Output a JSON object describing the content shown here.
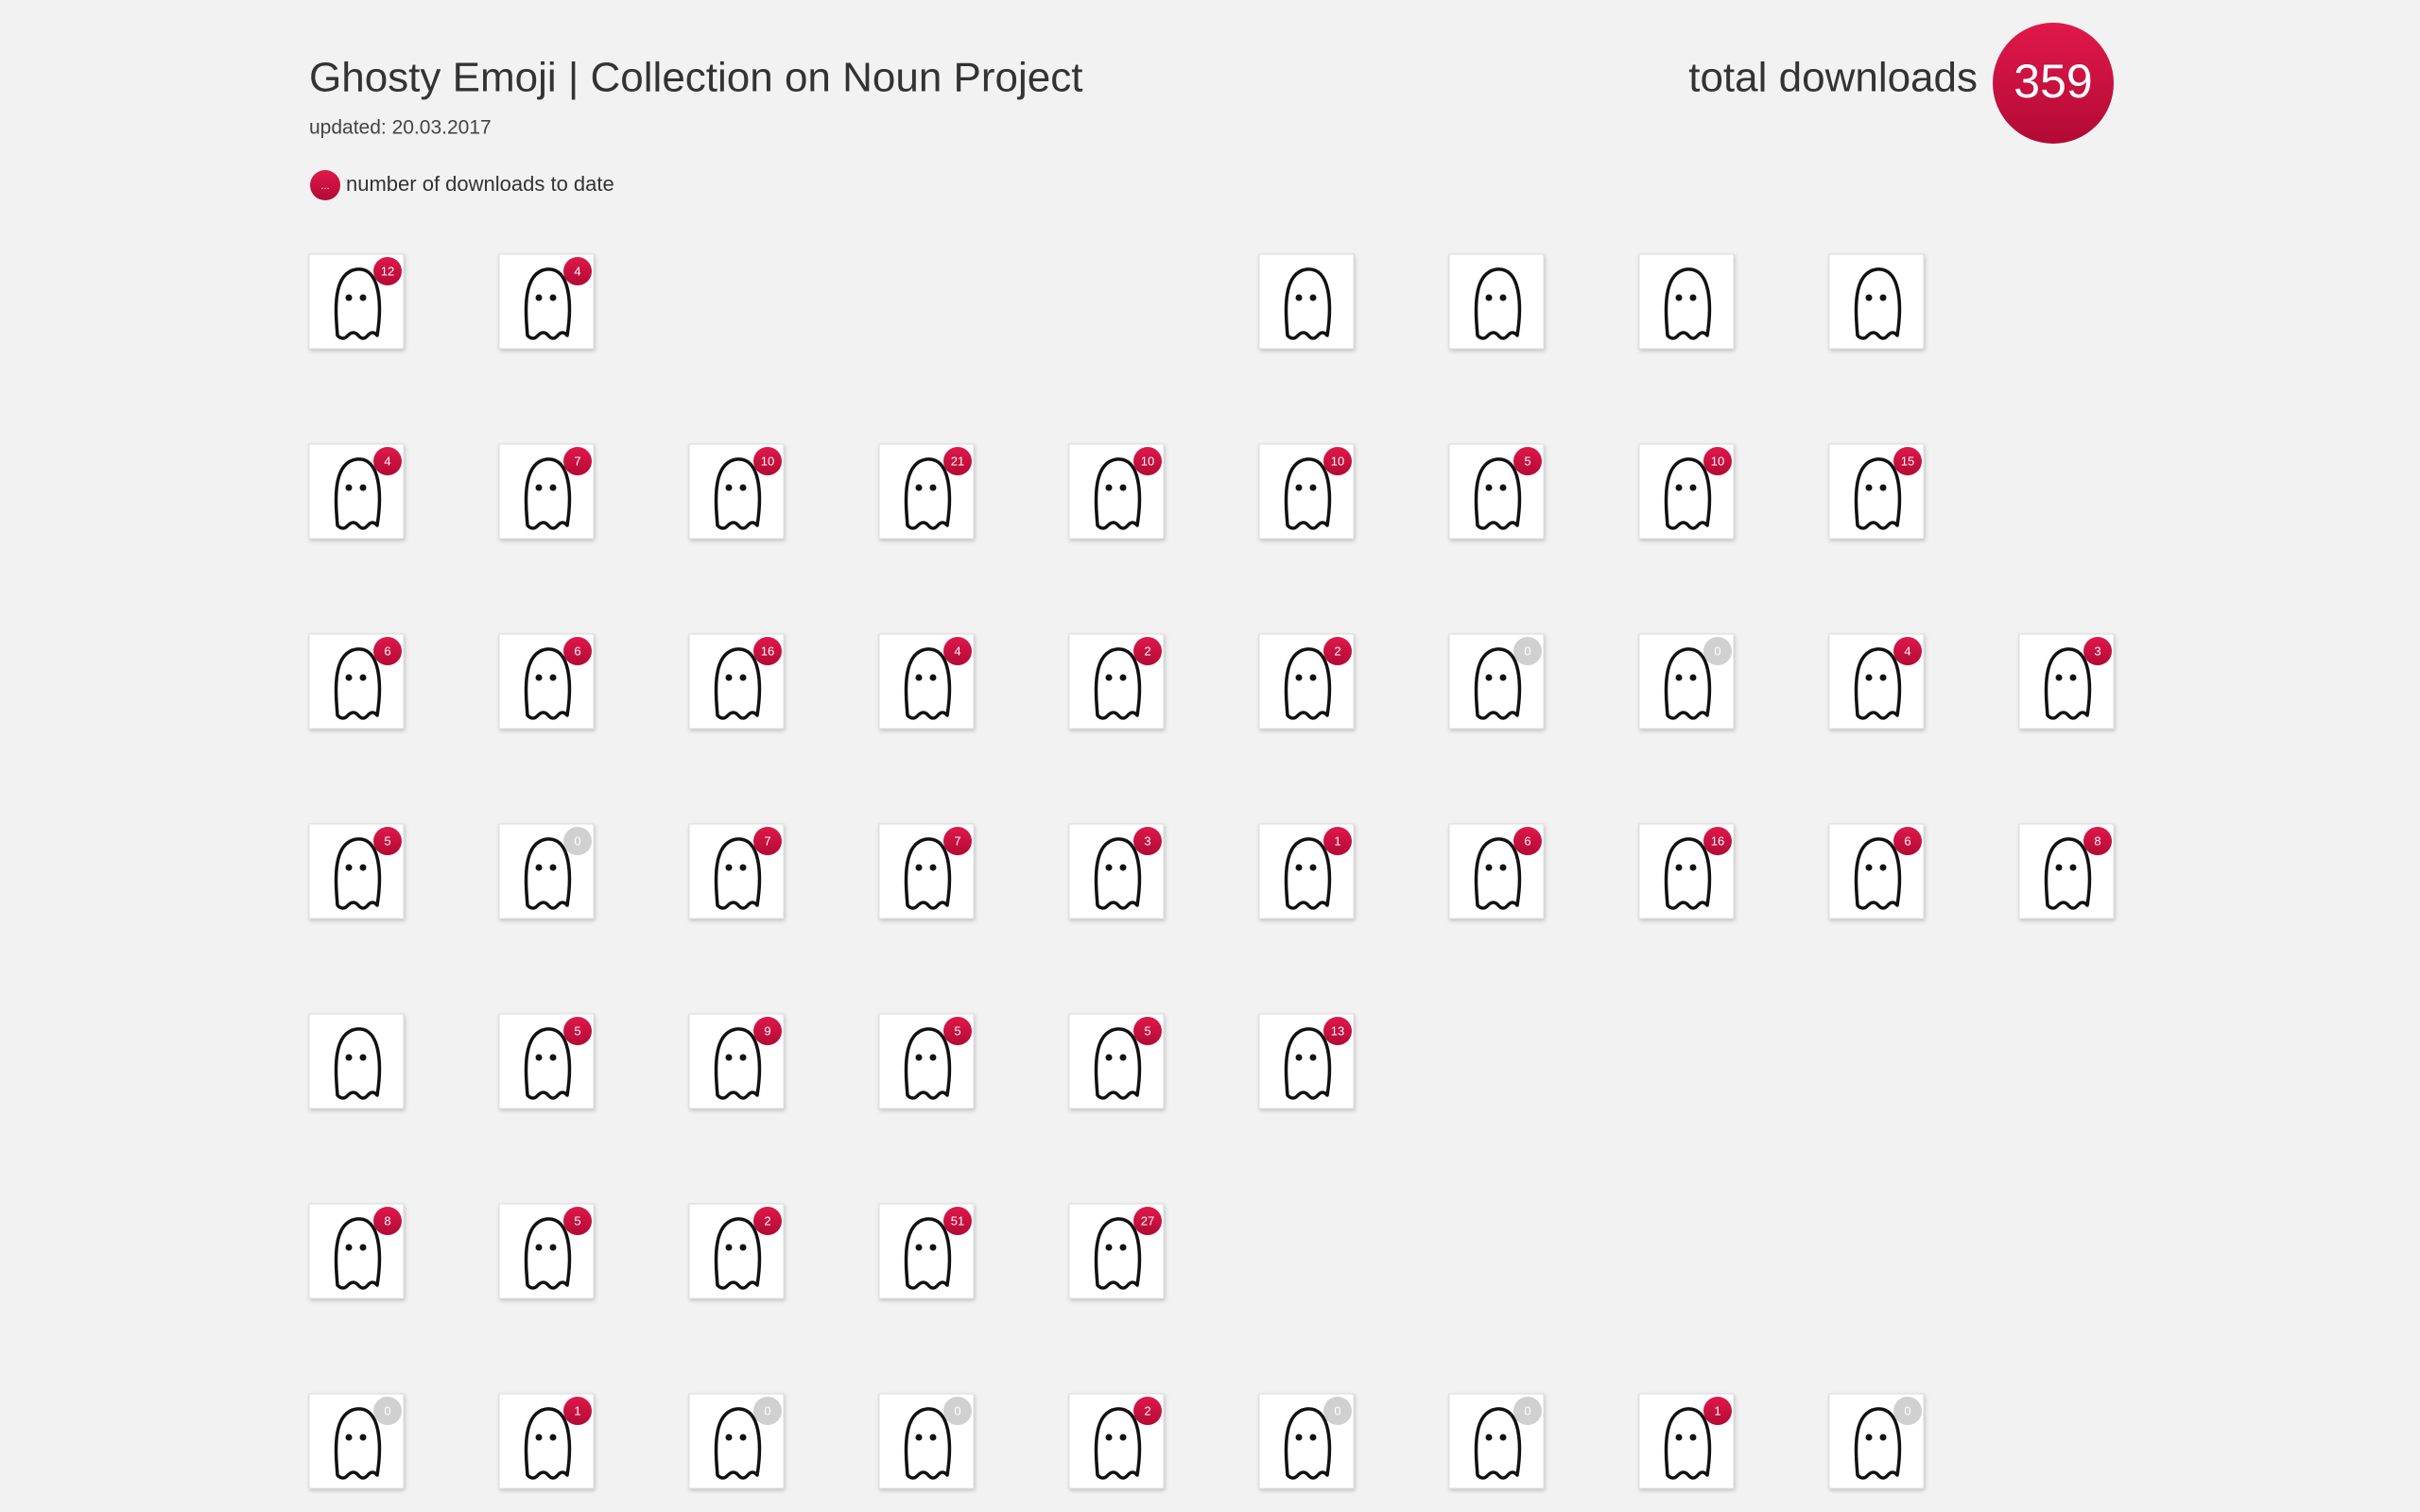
{
  "header": {
    "title": "Ghosty Emoji | Collection on Noun Project",
    "updated": "updated: 20.03.2017",
    "total_label": "total downloads",
    "total": 359
  },
  "legend": {
    "symbol": "...",
    "text": "number of downloads to date"
  },
  "grid": {
    "rows": [
      [
        {
          "count": 12
        },
        {
          "count": 4
        },
        null,
        null,
        null,
        {
          "count": null
        },
        {
          "count": null
        },
        {
          "count": null
        },
        {
          "count": null
        }
      ],
      [
        {
          "count": 4
        },
        {
          "count": 7
        },
        {
          "count": 10
        },
        {
          "count": 21
        },
        {
          "count": 10
        },
        {
          "count": 10
        },
        {
          "count": 5
        },
        {
          "count": 10
        },
        {
          "count": 15
        }
      ],
      [
        {
          "count": 6
        },
        {
          "count": 6
        },
        {
          "count": 16
        },
        {
          "count": 4
        },
        {
          "count": 2
        },
        {
          "count": 2
        },
        {
          "count": 0
        },
        {
          "count": 0
        },
        {
          "count": 4
        },
        {
          "count": 3
        }
      ],
      [
        {
          "count": 5
        },
        {
          "count": 0
        },
        {
          "count": 7
        },
        {
          "count": 7
        },
        {
          "count": 3
        },
        {
          "count": 1
        },
        {
          "count": 6
        },
        {
          "count": 16
        },
        {
          "count": 6
        },
        {
          "count": 8
        }
      ],
      [
        {
          "count": null
        },
        {
          "count": 5
        },
        {
          "count": 9
        },
        {
          "count": 5
        },
        {
          "count": 5
        },
        {
          "count": 13
        }
      ],
      [
        {
          "count": 8
        },
        {
          "count": 5
        },
        {
          "count": 2
        },
        {
          "count": 51
        },
        {
          "count": 27
        }
      ],
      [
        {
          "count": 0
        },
        {
          "count": 1
        },
        {
          "count": 0
        },
        {
          "count": 0
        },
        {
          "count": 2
        },
        {
          "count": 0
        },
        {
          "count": 0
        },
        {
          "count": 1
        },
        {
          "count": 0
        }
      ]
    ]
  }
}
